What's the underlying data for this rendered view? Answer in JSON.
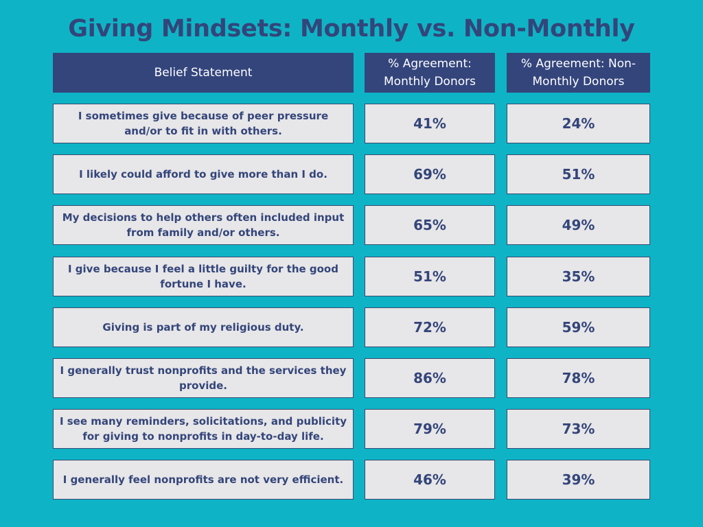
{
  "title": "Giving Mindsets: Monthly vs. Non-Monthly",
  "chart_data": {
    "type": "table",
    "title": "Giving Mindsets: Monthly vs. Non-Monthly",
    "columns": [
      "Belief Statement",
      "% Agreement: Monthly Donors",
      "% Agreement: Non-Monthly Donors"
    ],
    "rows": [
      [
        "I sometimes give because of peer pressure and/or to fit in with others.",
        "41%",
        "24%"
      ],
      [
        "I likely could afford to give more than I do.",
        "69%",
        "51%"
      ],
      [
        "My decisions to help others often included input from family and/or others.",
        "65%",
        "49%"
      ],
      [
        "I give because I feel a little guilty for the good fortune I have.",
        "51%",
        "35%"
      ],
      [
        "Giving is part of my religious duty.",
        "72%",
        "59%"
      ],
      [
        "I generally trust nonprofits and the services they provide.",
        "86%",
        "78%"
      ],
      [
        "I see many reminders, solicitations, and publicity for giving to nonprofits in day-to-day life.",
        "79%",
        "73%"
      ],
      [
        "I generally feel nonprofits are not very efficient.",
        "46%",
        "39%"
      ]
    ]
  }
}
